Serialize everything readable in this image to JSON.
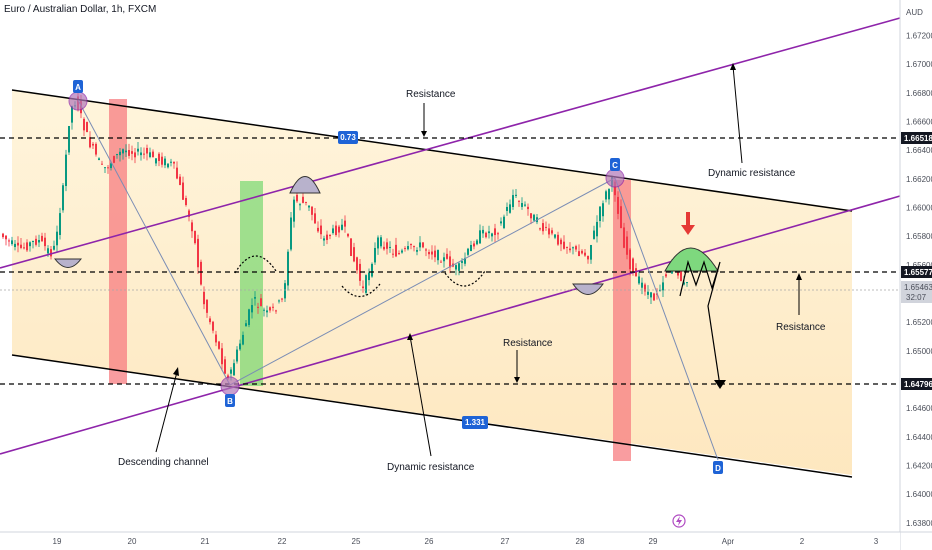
{
  "header": {
    "title": "Euro / Australian Dollar, 1h, FXCM",
    "currency": "AUD"
  },
  "chart_data": {
    "type": "candlestick",
    "symbol": "EURAUD",
    "timeframe": "1h",
    "x_ticks": [
      "19",
      "20",
      "21",
      "22",
      "25",
      "26",
      "27",
      "28",
      "29",
      "Apr",
      "2",
      "3"
    ],
    "y_ticks": [
      "1.67200",
      "1.67000",
      "1.66800",
      "1.66600",
      "1.66400",
      "1.66200",
      "1.66000",
      "1.65800",
      "1.65600",
      "1.65200",
      "1.65000",
      "1.64600",
      "1.64400",
      "1.64200",
      "1.64000",
      "1.63800"
    ],
    "ylim": [
      1.6375,
      1.6735
    ],
    "price_levels": [
      {
        "label": "1.66518",
        "value": 1.66518,
        "style": "dashed"
      },
      {
        "label": "1.65577",
        "value": 1.65577,
        "style": "dashed"
      },
      {
        "label": "1.64796",
        "value": 1.64796,
        "style": "dashed"
      }
    ],
    "current_price": {
      "label": "1.65463",
      "countdown": "32:07",
      "value": 1.65463
    },
    "points": [
      {
        "label": "A",
        "value": 1.6677
      },
      {
        "label": "B",
        "value": 1.6478
      },
      {
        "label": "C",
        "value": 1.6622
      },
      {
        "label": "D",
        "value": 1.6423
      }
    ],
    "ratios": [
      "0.73",
      "1.331"
    ],
    "annotations": [
      "Resistance",
      "Dynamic resistance",
      "Resistance",
      "Resistance",
      "Descending channel",
      "Dynamic resistance"
    ],
    "colors": {
      "channel_fill": "#fde3b4",
      "channel_line": "#000000",
      "dynamic_line": "#8e24aa",
      "bull": "#089981",
      "bear": "#f23645",
      "red_zone": "#f77c80",
      "green_zone": "#5fd35f",
      "point_tag": "#1e63d6",
      "ratio_tag": "#1e63d6",
      "hs_marker": "#8e8aa8"
    }
  }
}
